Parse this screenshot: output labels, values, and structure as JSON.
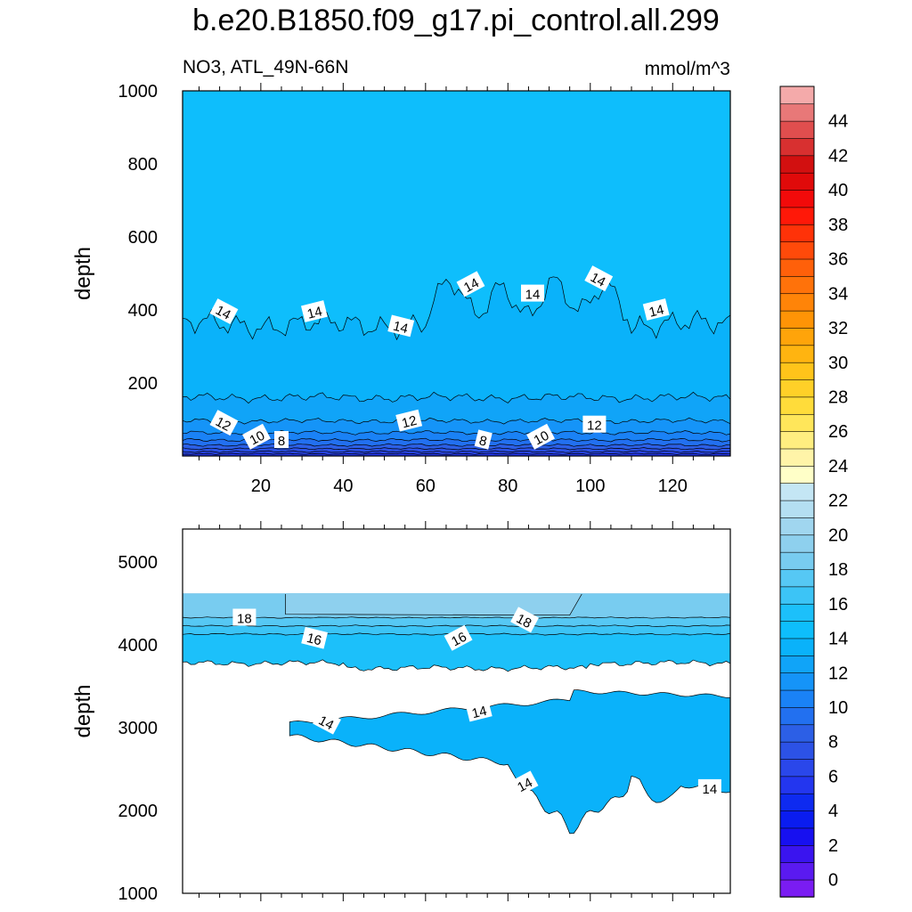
{
  "title": "b.e20.B1850.f09_g17.pi_control.all.299",
  "subtitle_left": "NO3, ATL_49N-66N",
  "subtitle_right": "mmol/m^3",
  "chart_data": [
    {
      "type": "contour",
      "panel": "upper",
      "ylabel": "depth",
      "xlabel": "",
      "xlim": [
        1,
        134
      ],
      "ylim": [
        1000,
        0
      ],
      "xticks": [
        20,
        40,
        60,
        80,
        100,
        120
      ],
      "yticks": [
        200,
        400,
        600,
        800,
        1000
      ],
      "contour_labels": [
        {
          "value": "10",
          "x": 19,
          "y": 52
        },
        {
          "value": "8",
          "x": 25,
          "y": 44
        },
        {
          "value": "12",
          "x": 11,
          "y": 90
        },
        {
          "value": "12",
          "x": 56,
          "y": 96
        },
        {
          "value": "8",
          "x": 74,
          "y": 44
        },
        {
          "value": "10",
          "x": 88,
          "y": 52
        },
        {
          "value": "12",
          "x": 101,
          "y": 86
        },
        {
          "value": "14",
          "x": 11,
          "y": 395
        },
        {
          "value": "14",
          "x": 33,
          "y": 395
        },
        {
          "value": "14",
          "x": 54,
          "y": 355
        },
        {
          "value": "14",
          "x": 71,
          "y": 470
        },
        {
          "value": "14",
          "x": 86,
          "y": 445
        },
        {
          "value": "14",
          "x": 102,
          "y": 485
        },
        {
          "value": "14",
          "x": 116,
          "y": 400
        }
      ]
    },
    {
      "type": "contour",
      "panel": "lower",
      "ylabel": "depth",
      "xlabel": "",
      "xlim": [
        1,
        134
      ],
      "ylim": [
        5400,
        1000
      ],
      "xticks": [
        20,
        40,
        60,
        80,
        100,
        120
      ],
      "yticks": [
        1000,
        2000,
        3000,
        4000,
        5000
      ],
      "bottom_depth": 4620,
      "contour_labels": [
        {
          "value": "14",
          "x": 84,
          "y": 2320
        },
        {
          "value": "14",
          "x": 129,
          "y": 2270
        },
        {
          "value": "14",
          "x": 36,
          "y": 3070
        },
        {
          "value": "14",
          "x": 73,
          "y": 3200
        },
        {
          "value": "16",
          "x": 33,
          "y": 4080
        },
        {
          "value": "16",
          "x": 68,
          "y": 4080
        },
        {
          "value": "18",
          "x": 16,
          "y": 4330
        },
        {
          "value": "18",
          "x": 84,
          "y": 4300
        }
      ]
    }
  ],
  "colorbar": {
    "levels": [
      -1,
      0,
      1,
      2,
      3,
      4,
      5,
      6,
      7,
      8,
      9,
      10,
      11,
      12,
      13,
      14,
      15,
      16,
      17,
      18,
      19,
      20,
      21,
      22,
      23,
      24,
      25,
      26,
      27,
      28,
      29,
      30,
      31,
      32,
      33,
      34,
      35,
      36,
      37,
      38,
      39,
      40,
      41,
      42,
      43,
      44,
      45,
      46
    ],
    "labels": [
      "0",
      "2",
      "4",
      "6",
      "8",
      "10",
      "12",
      "14",
      "16",
      "18",
      "20",
      "22",
      "24",
      "26",
      "28",
      "30",
      "32",
      "34",
      "36",
      "38",
      "40",
      "42",
      "44"
    ],
    "colors": [
      "#7a1cf2",
      "#5a1af0",
      "#3a14ef",
      "#1710f0",
      "#0a1cf0",
      "#0e2af0",
      "#2336ef",
      "#2a47ea",
      "#2c52e6",
      "#2c5fe6",
      "#2270f0",
      "#1a82f6",
      "#1594f8",
      "#10a4f8",
      "#0ab2fa",
      "#0ebefc",
      "#1cc0fa",
      "#3cc4f6",
      "#56c8f4",
      "#78ccf0",
      "#8ed0ee",
      "#a0d6ef",
      "#b4dff2",
      "#c4e6f4",
      "#ffffc8",
      "#fff4a8",
      "#ffee80",
      "#ffe65a",
      "#ffdc3a",
      "#ffd028",
      "#ffc41a",
      "#ffb410",
      "#ffa40a",
      "#ff9406",
      "#ff8408",
      "#ff720a",
      "#ff600a",
      "#ff4a0a",
      "#ff3208",
      "#ff1808",
      "#f20a0a",
      "#e00a0a",
      "#d21010",
      "#d83030",
      "#e04e4e",
      "#e87878",
      "#f4aaaa"
    ]
  }
}
